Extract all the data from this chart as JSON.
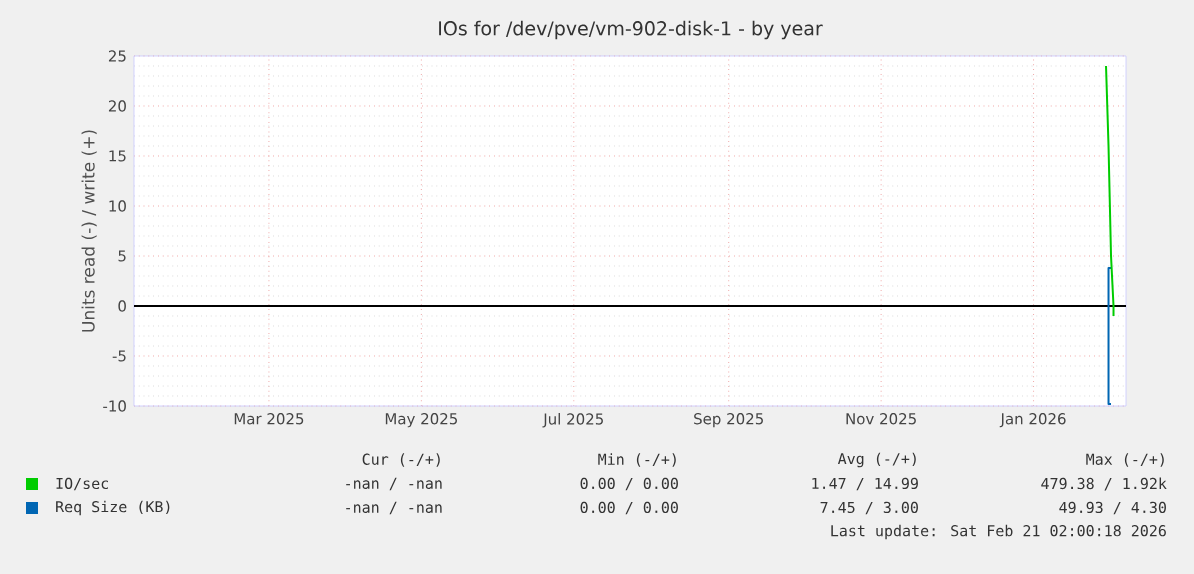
{
  "chart_data": {
    "type": "line",
    "title": "IOs for /dev/pve/vm-902-disk-1 - by year",
    "ylabel": "Units read (-) / write (+)",
    "xlim": [
      "2025-01-20",
      "2026-02-21"
    ],
    "xticks": [
      {
        "value": "2025-03-15",
        "label": "Mar 2025"
      },
      {
        "value": "2025-05-15",
        "label": "May 2025"
      },
      {
        "value": "2025-07-15",
        "label": "Jul 2025"
      },
      {
        "value": "2025-09-15",
        "label": "Sep 2025"
      },
      {
        "value": "2025-11-15",
        "label": "Nov 2025"
      },
      {
        "value": "2026-01-15",
        "label": "Jan 2026"
      }
    ],
    "ylim": [
      -10,
      25
    ],
    "yticks": [
      -10,
      -5,
      0,
      5,
      10,
      15,
      20,
      25
    ],
    "grid": true,
    "legend": "bottom",
    "ref_lines": [
      {
        "axis": "y",
        "value": 0,
        "color": "#000000"
      }
    ],
    "series": [
      {
        "name": "Req Size (KB)",
        "color": "#0066b3",
        "x": [
          "2026-02-15",
          "2026-02-14",
          "2026-02-14",
          "2026-02-15"
        ],
        "values": [
          3.8,
          3.8,
          -9.8,
          -9.8
        ]
      },
      {
        "name": "IO/sec",
        "color": "#00cc00",
        "x": [
          "2026-02-13",
          "2026-02-14",
          "2026-02-15",
          "2026-02-16",
          "2026-02-16"
        ],
        "values": [
          24,
          16,
          5,
          0,
          -1
        ]
      }
    ],
    "annotations": [
      "Cur (-/+)",
      "Min (-/+)",
      "Avg (-/+)",
      "Max (-/+)",
      "-nan /   -nan",
      "0.00 /   0.00",
      "1.47 /  14.99",
      "479.38 /   1.92k",
      "-nan /   -nan",
      "0.00 /   0.00",
      "7.45 /   3.00",
      "49.93 /   4.30",
      "Last update: Sat Feb 21 02:00:18 2026"
    ]
  }
}
